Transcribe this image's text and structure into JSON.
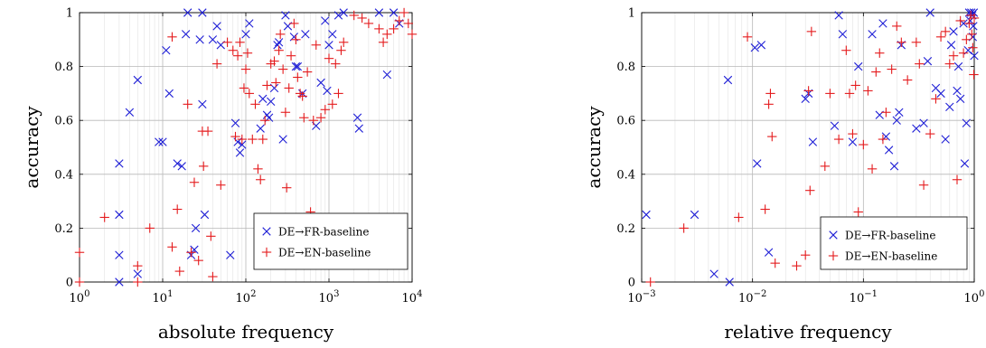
{
  "chart_data": [
    {
      "type": "scatter",
      "x_scale": "log",
      "xlim": [
        1,
        10000
      ],
      "ylim": [
        0,
        1
      ],
      "xlabel": "absolute frequency",
      "ylabel": "accuracy",
      "x_ticks": [
        {
          "v": 1,
          "b": "10",
          "e": "0"
        },
        {
          "v": 10,
          "b": "10",
          "e": "1"
        },
        {
          "v": 100,
          "b": "10",
          "e": "2"
        },
        {
          "v": 1000,
          "b": "10",
          "e": "3"
        },
        {
          "v": 10000,
          "b": "10",
          "e": "4"
        }
      ],
      "y_ticks": [
        {
          "v": 0,
          "label": "0"
        },
        {
          "v": 0.2,
          "label": "0.2"
        },
        {
          "v": 0.4,
          "label": "0.4"
        },
        {
          "v": 0.6,
          "label": "0.6"
        },
        {
          "v": 0.8,
          "label": "0.8"
        },
        {
          "v": 1,
          "label": "1"
        }
      ],
      "grid": true,
      "legend": "bottom-right",
      "series": [
        {
          "name": "DE→FR-baseline",
          "marker": "x",
          "color": "#1f1fd6",
          "points": [
            [
              3,
              0.44
            ],
            [
              3,
              0.25
            ],
            [
              3,
              0.1
            ],
            [
              3,
              0
            ],
            [
              4,
              0.63
            ],
            [
              5,
              0.75
            ],
            [
              5,
              0.03
            ],
            [
              9,
              0.52
            ],
            [
              10,
              0.52
            ],
            [
              11,
              0.86
            ],
            [
              12,
              0.7
            ],
            [
              15,
              0.44
            ],
            [
              17,
              0.43
            ],
            [
              19,
              0.92
            ],
            [
              20,
              1
            ],
            [
              22,
              0.1
            ],
            [
              24,
              0.12
            ],
            [
              25,
              0.2
            ],
            [
              28,
              0.9
            ],
            [
              30,
              1
            ],
            [
              30,
              0.66
            ],
            [
              32,
              0.25
            ],
            [
              40,
              0.9
            ],
            [
              45,
              0.95
            ],
            [
              50,
              0.88
            ],
            [
              65,
              0.1
            ],
            [
              75,
              0.59
            ],
            [
              80,
              0.52
            ],
            [
              85,
              0.48
            ],
            [
              90,
              0.51
            ],
            [
              100,
              0.92
            ],
            [
              110,
              0.96
            ],
            [
              150,
              0.57
            ],
            [
              160,
              0.68
            ],
            [
              180,
              0.62
            ],
            [
              190,
              0.61
            ],
            [
              200,
              0.67
            ],
            [
              220,
              0.72
            ],
            [
              240,
              0.88
            ],
            [
              250,
              0.89
            ],
            [
              280,
              0.53
            ],
            [
              300,
              0.99
            ],
            [
              320,
              0.95
            ],
            [
              380,
              0.91
            ],
            [
              400,
              0.8
            ],
            [
              420,
              0.8
            ],
            [
              480,
              0.7
            ],
            [
              520,
              0.92
            ],
            [
              700,
              0.58
            ],
            [
              800,
              0.74
            ],
            [
              900,
              0.97
            ],
            [
              950,
              0.71
            ],
            [
              1000,
              0.88
            ],
            [
              1100,
              0.92
            ],
            [
              1300,
              0.99
            ],
            [
              1500,
              1
            ],
            [
              2200,
              0.61
            ],
            [
              2300,
              0.57
            ],
            [
              4000,
              1
            ],
            [
              5000,
              0.77
            ],
            [
              6000,
              1
            ],
            [
              7000,
              0.96
            ]
          ]
        },
        {
          "name": "DE→EN-baseline",
          "marker": "+",
          "color": "#e41a1c",
          "points": [
            [
              1,
              0.11
            ],
            [
              1,
              0
            ],
            [
              2,
              0.24
            ],
            [
              5,
              0.06
            ],
            [
              5,
              0
            ],
            [
              7,
              0.2
            ],
            [
              13,
              0.91
            ],
            [
              13,
              0.13
            ],
            [
              15,
              0.27
            ],
            [
              16,
              0.04
            ],
            [
              20,
              0.66
            ],
            [
              22,
              0.11
            ],
            [
              24,
              0.37
            ],
            [
              27,
              0.08
            ],
            [
              30,
              0.56
            ],
            [
              31,
              0.43
            ],
            [
              35,
              0.56
            ],
            [
              38,
              0.17
            ],
            [
              40,
              0.02
            ],
            [
              45,
              0.81
            ],
            [
              50,
              0.36
            ],
            [
              60,
              0.89
            ],
            [
              70,
              0.86
            ],
            [
              75,
              0.54
            ],
            [
              80,
              0.84
            ],
            [
              85,
              0.89
            ],
            [
              90,
              0.53
            ],
            [
              95,
              0.72
            ],
            [
              100,
              0.79
            ],
            [
              105,
              0.85
            ],
            [
              110,
              0.7
            ],
            [
              120,
              0.53
            ],
            [
              130,
              0.66
            ],
            [
              140,
              0.42
            ],
            [
              150,
              0.38
            ],
            [
              160,
              0.53
            ],
            [
              170,
              0.6
            ],
            [
              180,
              0.73
            ],
            [
              200,
              0.81
            ],
            [
              220,
              0.82
            ],
            [
              230,
              0.74
            ],
            [
              250,
              0.86
            ],
            [
              260,
              0.92
            ],
            [
              280,
              0.79
            ],
            [
              300,
              0.63
            ],
            [
              310,
              0.35
            ],
            [
              330,
              0.72
            ],
            [
              350,
              0.84
            ],
            [
              380,
              0.96
            ],
            [
              400,
              0.9
            ],
            [
              420,
              0.76
            ],
            [
              450,
              0.7
            ],
            [
              480,
              0.69
            ],
            [
              500,
              0.61
            ],
            [
              550,
              0.78
            ],
            [
              600,
              0.26
            ],
            [
              650,
              0.6
            ],
            [
              700,
              0.88
            ],
            [
              800,
              0.61
            ],
            [
              900,
              0.64
            ],
            [
              1000,
              0.83
            ],
            [
              1100,
              0.66
            ],
            [
              1200,
              0.81
            ],
            [
              1300,
              0.7
            ],
            [
              1400,
              0.86
            ],
            [
              1500,
              0.89
            ],
            [
              2000,
              0.99
            ],
            [
              2500,
              0.98
            ],
            [
              3000,
              0.96
            ],
            [
              4000,
              0.94
            ],
            [
              4500,
              0.89
            ],
            [
              5000,
              0.92
            ],
            [
              6000,
              0.94
            ],
            [
              7000,
              0.97
            ],
            [
              8000,
              1
            ],
            [
              9000,
              0.96
            ],
            [
              10000,
              0.92
            ]
          ]
        }
      ]
    },
    {
      "type": "scatter",
      "x_scale": "log",
      "xlim": [
        0.001,
        1
      ],
      "ylim": [
        0,
        1
      ],
      "xlabel": "relative frequency",
      "ylabel": "accuracy",
      "x_ticks": [
        {
          "v": 0.001,
          "b": "10",
          "e": "−3"
        },
        {
          "v": 0.01,
          "b": "10",
          "e": "−2"
        },
        {
          "v": 0.1,
          "b": "10",
          "e": "−1"
        },
        {
          "v": 1,
          "b": "10",
          "e": "0"
        }
      ],
      "y_ticks": [
        {
          "v": 0,
          "label": "0"
        },
        {
          "v": 0.2,
          "label": "0.2"
        },
        {
          "v": 0.4,
          "label": "0.4"
        },
        {
          "v": 0.6,
          "label": "0.6"
        },
        {
          "v": 0.8,
          "label": "0.8"
        },
        {
          "v": 1,
          "label": "1"
        }
      ],
      "grid": true,
      "legend": "bottom-right",
      "series": [
        {
          "name": "DE→FR-baseline",
          "marker": "x",
          "color": "#1f1fd6",
          "points": [
            [
              0.0011,
              0.25
            ],
            [
              0.003,
              0.25
            ],
            [
              0.0045,
              0.03
            ],
            [
              0.006,
              0.75
            ],
            [
              0.0062,
              0
            ],
            [
              0.0105,
              0.87
            ],
            [
              0.011,
              0.44
            ],
            [
              0.012,
              0.88
            ],
            [
              0.014,
              0.11
            ],
            [
              0.03,
              0.68
            ],
            [
              0.032,
              0.7
            ],
            [
              0.035,
              0.52
            ],
            [
              0.055,
              0.58
            ],
            [
              0.06,
              0.99
            ],
            [
              0.065,
              0.92
            ],
            [
              0.08,
              0.52
            ],
            [
              0.09,
              0.8
            ],
            [
              0.12,
              0.92
            ],
            [
              0.14,
              0.62
            ],
            [
              0.15,
              0.96
            ],
            [
              0.16,
              0.54
            ],
            [
              0.17,
              0.49
            ],
            [
              0.19,
              0.43
            ],
            [
              0.2,
              0.6
            ],
            [
              0.21,
              0.63
            ],
            [
              0.22,
              0.88
            ],
            [
              0.3,
              0.57
            ],
            [
              0.35,
              0.59
            ],
            [
              0.38,
              0.82
            ],
            [
              0.4,
              1
            ],
            [
              0.45,
              0.72
            ],
            [
              0.5,
              0.7
            ],
            [
              0.55,
              0.53
            ],
            [
              0.6,
              0.65
            ],
            [
              0.62,
              0.88
            ],
            [
              0.65,
              0.93
            ],
            [
              0.7,
              0.71
            ],
            [
              0.72,
              0.8
            ],
            [
              0.75,
              0.68
            ],
            [
              0.8,
              0.96
            ],
            [
              0.82,
              0.44
            ],
            [
              0.85,
              0.59
            ],
            [
              0.88,
              0.86
            ],
            [
              0.9,
              1
            ],
            [
              0.92,
              0.97
            ],
            [
              0.94,
              1
            ],
            [
              0.96,
              0.99
            ],
            [
              0.97,
              0.91
            ],
            [
              0.98,
              0.95
            ],
            [
              0.99,
              1
            ],
            [
              1,
              0.84
            ]
          ]
        },
        {
          "name": "DE→EN-baseline",
          "marker": "+",
          "color": "#e41a1c",
          "points": [
            [
              0.0012,
              0
            ],
            [
              0.0024,
              0.2
            ],
            [
              0.0075,
              0.24
            ],
            [
              0.009,
              0.91
            ],
            [
              0.013,
              0.27
            ],
            [
              0.014,
              0.66
            ],
            [
              0.0145,
              0.7
            ],
            [
              0.015,
              0.54
            ],
            [
              0.016,
              0.07
            ],
            [
              0.025,
              0.06
            ],
            [
              0.03,
              0.1
            ],
            [
              0.032,
              0.71
            ],
            [
              0.033,
              0.34
            ],
            [
              0.034,
              0.93
            ],
            [
              0.045,
              0.43
            ],
            [
              0.05,
              0.7
            ],
            [
              0.06,
              0.53
            ],
            [
              0.07,
              0.86
            ],
            [
              0.075,
              0.7
            ],
            [
              0.08,
              0.55
            ],
            [
              0.085,
              0.73
            ],
            [
              0.09,
              0.26
            ],
            [
              0.1,
              0.51
            ],
            [
              0.11,
              0.71
            ],
            [
              0.12,
              0.42
            ],
            [
              0.13,
              0.78
            ],
            [
              0.14,
              0.85
            ],
            [
              0.15,
              0.53
            ],
            [
              0.16,
              0.63
            ],
            [
              0.18,
              0.79
            ],
            [
              0.2,
              0.95
            ],
            [
              0.22,
              0.89
            ],
            [
              0.25,
              0.75
            ],
            [
              0.3,
              0.89
            ],
            [
              0.32,
              0.81
            ],
            [
              0.35,
              0.36
            ],
            [
              0.4,
              0.55
            ],
            [
              0.45,
              0.68
            ],
            [
              0.5,
              0.91
            ],
            [
              0.55,
              0.93
            ],
            [
              0.6,
              0.81
            ],
            [
              0.65,
              0.84
            ],
            [
              0.7,
              0.38
            ],
            [
              0.75,
              0.97
            ],
            [
              0.8,
              0.85
            ],
            [
              0.85,
              0.9
            ],
            [
              0.9,
              0.96
            ],
            [
              0.93,
              0.99
            ],
            [
              0.95,
              0.92
            ],
            [
              0.97,
              0.87
            ],
            [
              0.99,
              0.77
            ],
            [
              1,
              0.98
            ]
          ]
        }
      ]
    }
  ]
}
